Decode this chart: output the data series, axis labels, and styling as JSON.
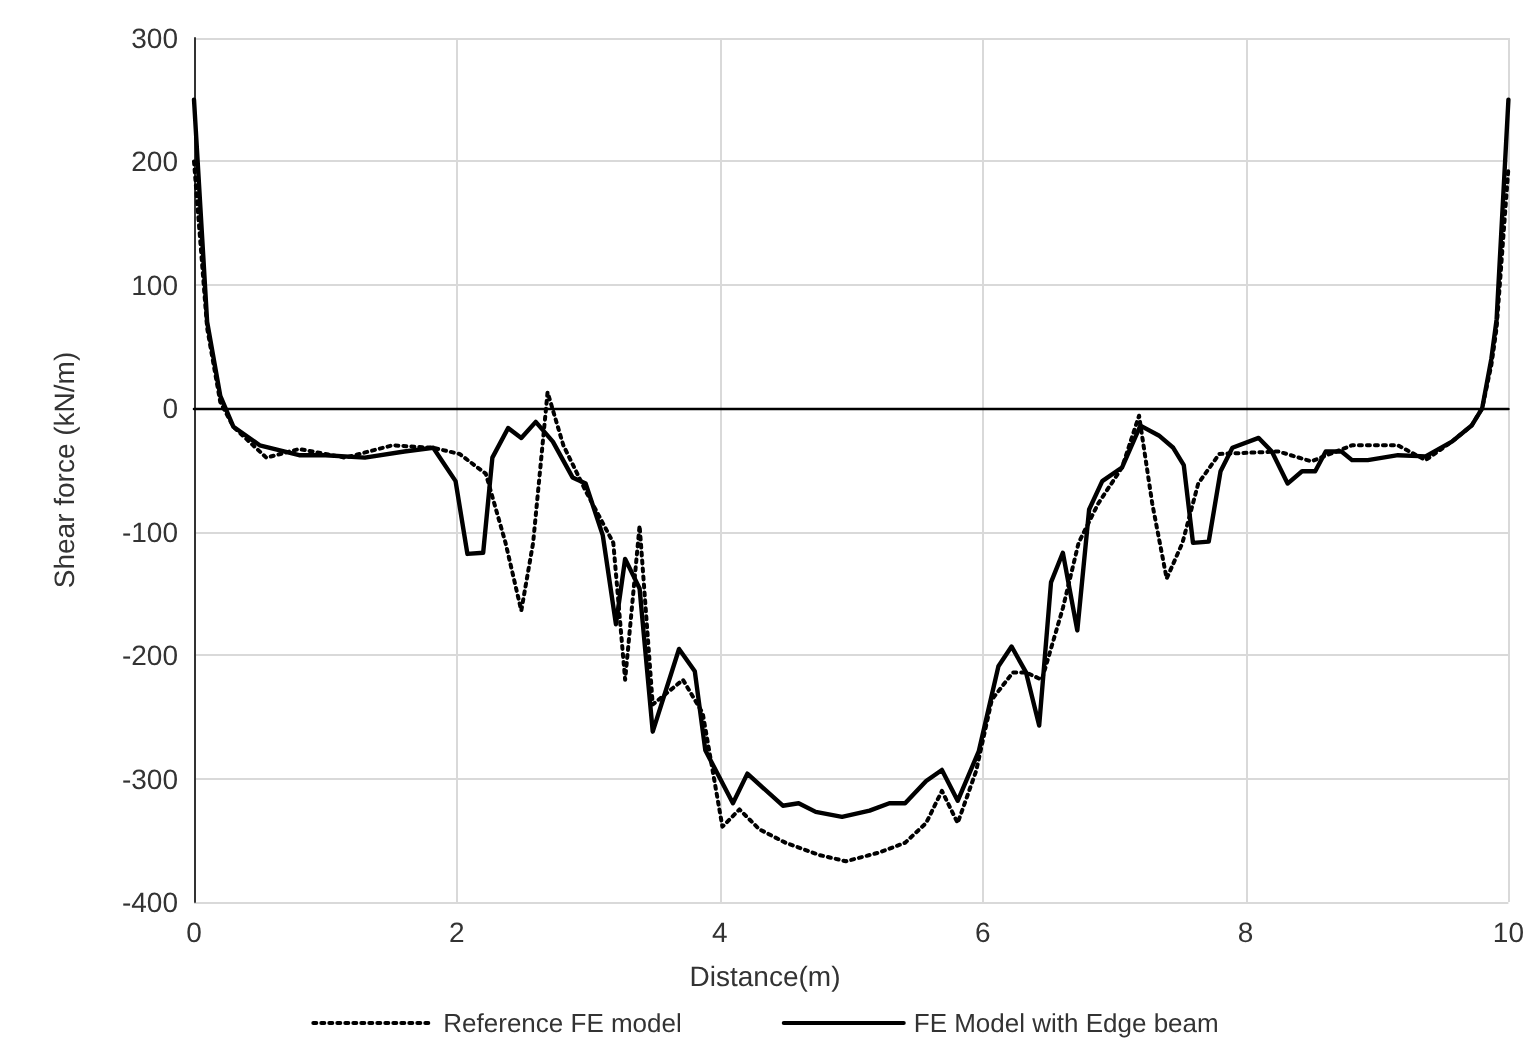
{
  "chart_data": {
    "type": "line",
    "xlabel": "Distance(m)",
    "ylabel": "Shear force (kN/m)",
    "xlim": [
      0,
      10
    ],
    "xticks": [
      0,
      2,
      4,
      6,
      8,
      10
    ],
    "ylim": [
      -400,
      300
    ],
    "yticks": [
      -400,
      -300,
      -200,
      -100,
      0,
      100,
      200,
      300
    ],
    "grid": true,
    "legend": "bottom",
    "marker": "none",
    "series": [
      {
        "name": "Reference FE model",
        "color": "#000000",
        "line_style": "dotted",
        "x": [
          0,
          0.1,
          0.2,
          0.3,
          0.55,
          0.8,
          1.15,
          1.51,
          1.82,
          2.02,
          2.22,
          2.37,
          2.49,
          2.58,
          2.69,
          2.81,
          2.98,
          3.19,
          3.28,
          3.39,
          3.49,
          3.72,
          3.87,
          4.02,
          4.15,
          4.3,
          4.5,
          4.76,
          4.96,
          5.21,
          5.41,
          5.57,
          5.69,
          5.81,
          5.95,
          6.07,
          6.23,
          6.33,
          6.45,
          6.61,
          6.73,
          6.88,
          7.06,
          7.19,
          7.29,
          7.4,
          7.52,
          7.64,
          7.8,
          8.25,
          8.5,
          8.81,
          9.16,
          9.37,
          9.57,
          9.72,
          9.8,
          9.87,
          9.91,
          10
        ],
        "values": [
          200,
          65,
          5,
          -15,
          -40,
          -33,
          -40,
          -30,
          -32,
          -37,
          -53,
          -109,
          -164,
          -109,
          13,
          -30,
          -67,
          -109,
          -220,
          -95,
          -240,
          -220,
          -247,
          -339,
          -325,
          -341,
          -352,
          -362,
          -367,
          -360,
          -352,
          -336,
          -310,
          -336,
          -294,
          -236,
          -214,
          -214,
          -220,
          -162,
          -109,
          -77,
          -48,
          -6,
          -77,
          -138,
          -109,
          -61,
          -37,
          -35,
          -43,
          -30,
          -30,
          -42,
          -27,
          -14,
          0,
          35,
          65,
          195
        ]
      },
      {
        "name": "FE Model with Edge beam",
        "color": "#000000",
        "line_style": "solid",
        "x": [
          0,
          0.1,
          0.2,
          0.3,
          0.5,
          0.8,
          1.0,
          1.3,
          1.6,
          1.82,
          1.99,
          2.08,
          2.2,
          2.27,
          2.39,
          2.49,
          2.6,
          2.73,
          2.88,
          2.98,
          3.11,
          3.21,
          3.28,
          3.39,
          3.49,
          3.69,
          3.81,
          3.89,
          4.1,
          4.21,
          4.48,
          4.6,
          4.73,
          4.93,
          5.14,
          5.29,
          5.41,
          5.57,
          5.69,
          5.81,
          5.97,
          6.12,
          6.22,
          6.33,
          6.43,
          6.52,
          6.61,
          6.72,
          6.81,
          6.91,
          7.06,
          7.2,
          7.34,
          7.45,
          7.53,
          7.6,
          7.72,
          7.81,
          7.9,
          8.1,
          8.2,
          8.32,
          8.43,
          8.53,
          8.61,
          8.73,
          8.81,
          8.93,
          9.16,
          9.37,
          9.57,
          9.72,
          9.8,
          9.87,
          9.91,
          10
        ],
        "values": [
          250,
          70,
          10,
          -15,
          -30,
          -38,
          -38,
          -40,
          -35,
          -32,
          -59,
          -118,
          -117,
          -40,
          -16,
          -24,
          -11,
          -27,
          -56,
          -61,
          -103,
          -175,
          -122,
          -146,
          -262,
          -195,
          -213,
          -277,
          -320,
          -296,
          -322,
          -320,
          -327,
          -331,
          -326,
          -320,
          -320,
          -302,
          -293,
          -318,
          -278,
          -209,
          -193,
          -214,
          -257,
          -141,
          -117,
          -180,
          -82,
          -59,
          -48,
          -14,
          -22,
          -32,
          -46,
          -109,
          -108,
          -51,
          -32,
          -24,
          -35,
          -61,
          -51,
          -51,
          -35,
          -35,
          -42,
          -42,
          -38,
          -39,
          -27,
          -14,
          0,
          40,
          72,
          250
        ]
      }
    ]
  }
}
